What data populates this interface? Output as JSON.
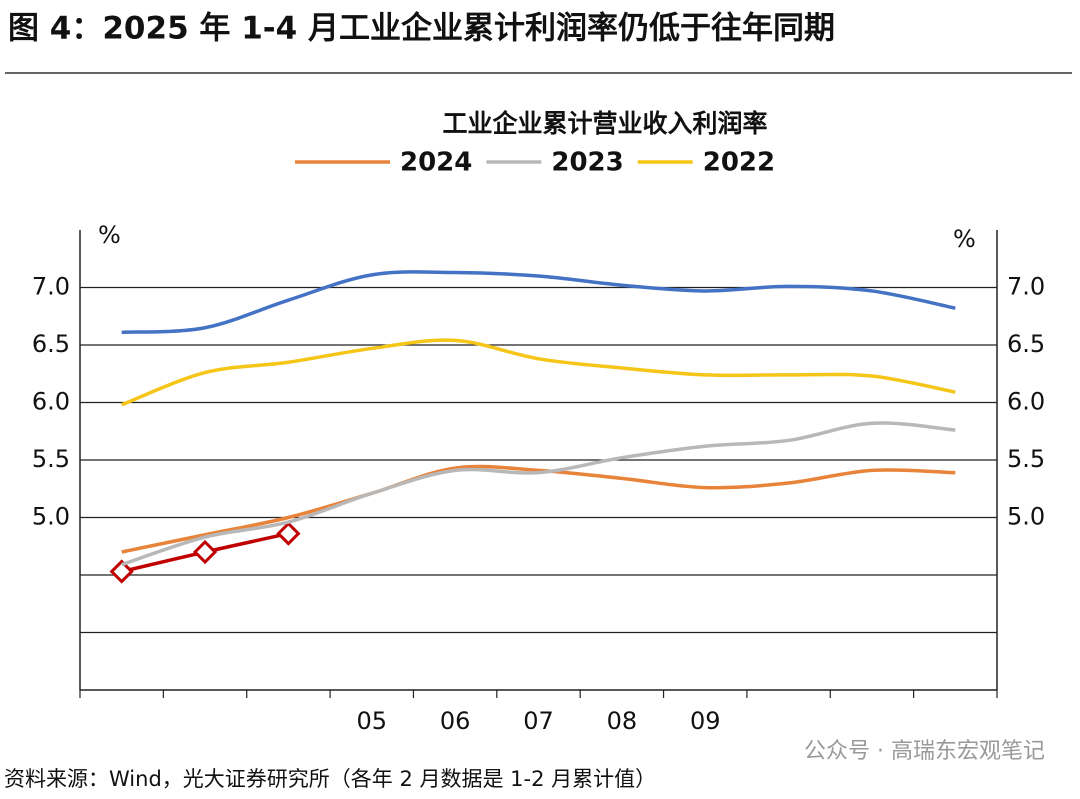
{
  "header": {
    "title": "图 4：2025 年 1-4 月工业企业累计利润率仍低于往年同期"
  },
  "chart_data": {
    "type": "line",
    "title": "工业企业累计营业收入利润率",
    "y_unit": "%",
    "categories": [
      null,
      null,
      null,
      "05",
      "06",
      "07",
      "08",
      "09",
      null,
      null,
      null
    ],
    "series": [
      {
        "color": "#c00000",
        "marker": "diamond",
        "values": [
          4.53,
          4.7,
          4.86,
          null,
          null,
          null,
          null,
          null,
          null,
          null,
          null
        ]
      },
      {
        "name": "2024",
        "color": "#e8833a",
        "values": [
          4.7,
          4.85,
          5.0,
          5.21,
          5.43,
          5.41,
          5.34,
          5.26,
          5.3,
          5.41,
          5.39
        ]
      },
      {
        "name": "2023",
        "color": "#b8b8b8",
        "values": [
          4.59,
          4.83,
          4.96,
          5.21,
          5.41,
          5.39,
          5.52,
          5.62,
          5.67,
          5.82,
          5.76
        ]
      },
      {
        "name": "2022",
        "color": "#f5c518",
        "values": [
          5.98,
          6.26,
          6.35,
          6.47,
          6.54,
          6.38,
          6.3,
          6.24,
          6.24,
          6.23,
          6.09
        ]
      },
      {
        "color": "#4472c4",
        "values": [
          6.61,
          6.65,
          6.89,
          7.11,
          7.13,
          7.1,
          7.02,
          6.97,
          7.01,
          6.97,
          6.82
        ]
      }
    ],
    "ylim": [
      3.5,
      7.5
    ],
    "yticks": [
      {
        "value": 4.0,
        "label": null
      },
      {
        "value": 4.5,
        "label": null
      },
      {
        "value": 5.0,
        "label": "5.0"
      },
      {
        "value": 5.5,
        "label": "5.5"
      },
      {
        "value": 6.0,
        "label": "6.0"
      },
      {
        "value": 6.5,
        "label": "6.5"
      },
      {
        "value": 7.0,
        "label": "7.0"
      }
    ],
    "grid": true,
    "legend": "top"
  },
  "footer": {
    "source": "资料来源：Wind，光大证券研究所（各年 2 月数据是 1-2 月累计值）",
    "watermark": "公众号 · 高瑞东宏观笔记"
  }
}
